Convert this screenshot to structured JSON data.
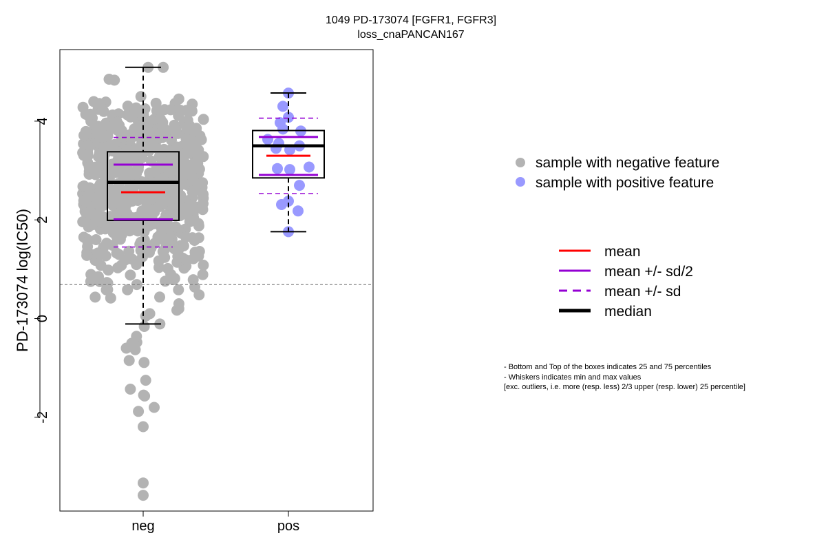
{
  "chart_data": {
    "type": "box",
    "title": [
      "1049 PD-173074 [FGFR1, FGFR3]",
      "loss_cnaPANCAN167"
    ],
    "ylabel": "PD-173074 log(IC50)",
    "xlabel": "",
    "categories": [
      "neg",
      "pos"
    ],
    "ylim": [
      -3.9,
      5.45
    ],
    "yticks": [
      -2,
      0,
      2,
      4
    ],
    "reference_line": 0.69,
    "groups": [
      {
        "name": "neg",
        "color": "#b3b3b3",
        "box": {
          "q1": 1.99,
          "median": 2.76,
          "q3": 3.38,
          "whisker_low": -0.11,
          "whisker_high": 5.09
        },
        "mean": 2.56,
        "mean_sd_half": [
          2.01,
          3.12
        ],
        "mean_sd": [
          1.45,
          3.67
        ],
        "sample_count": 700
      },
      {
        "name": "pos",
        "color": "#9999ff",
        "box": {
          "q1": 2.85,
          "median": 3.5,
          "q3": 3.81,
          "whisker_low": 1.76,
          "whisker_high": 4.57
        },
        "mean": 3.3,
        "mean_sd_half": [
          2.91,
          3.68
        ],
        "mean_sd": [
          2.53,
          4.06
        ],
        "points": [
          4.57,
          4.3,
          4.08,
          3.97,
          3.84,
          3.8,
          3.63,
          3.55,
          3.5,
          3.45,
          3.42,
          3.07,
          3.04,
          3.02,
          2.7,
          2.38,
          2.31,
          2.18,
          1.76
        ]
      }
    ],
    "legend_points": [
      {
        "label": "sample with negative feature",
        "color": "#b3b3b3"
      },
      {
        "label": "sample with positive feature",
        "color": "#9999ff"
      }
    ],
    "legend_lines": [
      {
        "label": "mean",
        "color": "#ff0000",
        "style": "solid"
      },
      {
        "label": "mean +/- sd/2",
        "color": "#9400d3",
        "style": "solid"
      },
      {
        "label": "mean +/- sd",
        "color": "#9400d3",
        "style": "dashed"
      },
      {
        "label": "median",
        "color": "#000000",
        "style": "solid-thick"
      }
    ],
    "notes": [
      "- Bottom and Top of the boxes indicates 25 and 75 percentiles",
      "- Whiskers indicates min and max values",
      "[exc. outliers, i.e. more (resp. less) 2/3 upper (resp. lower) 25 percentile]"
    ]
  }
}
